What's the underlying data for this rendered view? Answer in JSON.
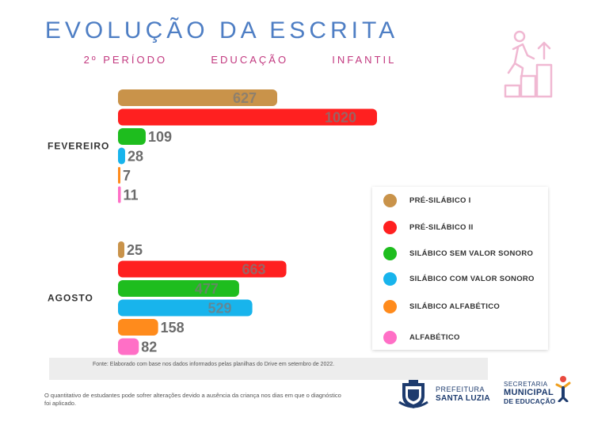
{
  "header": {
    "title": "EVOLUÇÃO DA ESCRITA",
    "subtitle_parts": [
      "2º PERÍODO",
      "EDUCAÇÃO",
      "INFANTIL"
    ]
  },
  "chart_data": {
    "type": "bar",
    "orientation": "horizontal",
    "title": "EVOLUÇÃO DA ESCRITA",
    "subtitle": "2º PERÍODO EDUCAÇÃO INFANTIL",
    "categories": [
      "FEVEREIRO",
      "AGOSTO"
    ],
    "series": [
      {
        "name": "PRÉ-SILÁBICO I",
        "color": "#c9934a",
        "values": [
          627,
          25
        ]
      },
      {
        "name": "PRÉ-SILÁBICO II",
        "color": "#ff2020",
        "values": [
          1020,
          663
        ]
      },
      {
        "name": "SILÁBICO SEM VALOR SONORO",
        "color": "#1ebd1e",
        "values": [
          109,
          477
        ]
      },
      {
        "name": "SILÁBICO COM VALOR SONORO",
        "color": "#18b4ec",
        "values": [
          28,
          529
        ]
      },
      {
        "name": "SILÁBICO ALFABÉTICO",
        "color": "#ff8b1c",
        "values": [
          7,
          158
        ]
      },
      {
        "name": "ALFABÉTICO",
        "color": "#ff6fc6",
        "values": [
          11,
          82
        ]
      }
    ],
    "xlim": [
      0,
      1020
    ],
    "grid": false,
    "legend_position": "right"
  },
  "source_note": "Fonte: Elaborado com base nos dados informados pelas planilhas do Drive em  setembro de 2022.",
  "footnote": "O quantitativo de estudantes pode sofrer alterações devido a ausência da criança nos dias em que o diagnóstico foi aplicado.",
  "logos": {
    "prefeitura_top": "PREFEITURA",
    "prefeitura_bottom": "SANTA LUZIA",
    "secretaria_l1": "SECRETARIA",
    "secretaria_l2": "MUNICIPAL",
    "secretaria_l3": "DE EDUCAÇÃO"
  },
  "icons": {
    "header": "stairs-climb-icon",
    "prefeitura": "coat-of-arms-icon",
    "secretaria": "education-figure-icon"
  }
}
